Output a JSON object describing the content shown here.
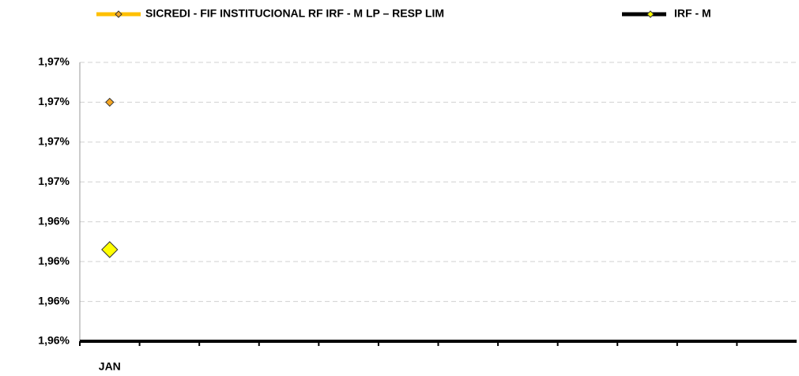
{
  "chart_data": {
    "type": "line",
    "categories": [
      "JAN",
      null,
      null,
      null,
      null,
      null,
      null,
      null,
      null,
      null,
      null,
      null
    ],
    "series": [
      {
        "name": "SICREDI - FIF INSTITUCIONAL RF IRF - M LP – RESP LIM",
        "color": "#FFC000",
        "marker_color": "#F5A623",
        "marker_size": 5,
        "values": [
          1.968,
          null,
          null,
          null,
          null,
          null,
          null,
          null,
          null,
          null,
          null,
          null
        ]
      },
      {
        "name": "IRF - M",
        "color": "#000000",
        "marker_color": "#FFFF00",
        "marker_size": 10,
        "values": [
          1.9606,
          null,
          null,
          null,
          null,
          null,
          null,
          null,
          null,
          null,
          null,
          null
        ]
      }
    ],
    "ylim": [
      1.956,
      1.97
    ],
    "yticks": [
      {
        "value": 1.956,
        "label": "1,96%"
      },
      {
        "value": 1.958,
        "label": "1,96%"
      },
      {
        "value": 1.96,
        "label": "1,96%"
      },
      {
        "value": 1.962,
        "label": "1,96%"
      },
      {
        "value": 1.964,
        "label": "1,97%"
      },
      {
        "value": 1.966,
        "label": "1,97%"
      },
      {
        "value": 1.968,
        "label": "1,97%"
      },
      {
        "value": 1.97,
        "label": "1,97%"
      }
    ],
    "grid": true,
    "legend": "top"
  }
}
